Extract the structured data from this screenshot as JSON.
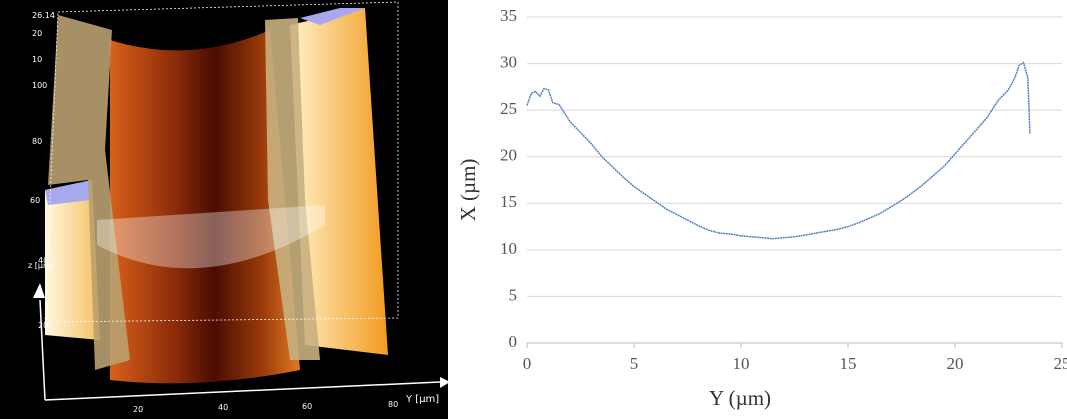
{
  "afm_image": {
    "z_labels": [
      "26.14",
      "20",
      "10",
      "100",
      "80",
      "60",
      "z [µm]",
      "40",
      "20"
    ],
    "bottom_labels": [
      "20",
      "40",
      "60",
      "80"
    ],
    "y_axis_label": "Y [µm]"
  },
  "chart_data": {
    "type": "line",
    "x_label": "Y (µm)",
    "y_label": "X (µm)",
    "x": [
      0,
      0.2,
      0.4,
      0.6,
      0.8,
      1,
      1.2,
      1.5,
      2,
      2.5,
      3,
      3.5,
      4,
      4.5,
      5,
      5.5,
      6,
      6.5,
      7,
      7.5,
      8,
      8.5,
      9,
      9.5,
      10,
      10.5,
      11,
      11.5,
      12,
      12.5,
      13,
      13.5,
      14,
      14.5,
      15,
      15.5,
      16,
      16.5,
      17,
      17.5,
      18,
      18.5,
      19,
      19.5,
      20,
      20.5,
      21,
      21.5,
      22,
      22.5,
      22.8,
      23,
      23.2,
      23.4,
      23.5
    ],
    "series": [
      {
        "color": "#4f81bd",
        "values": [
          25.5,
          26.8,
          27,
          26.5,
          27.3,
          27.2,
          25.8,
          25.6,
          23.8,
          22.6,
          21.4,
          20,
          18.9,
          17.8,
          16.8,
          16,
          15.2,
          14.4,
          13.8,
          13.2,
          12.6,
          12.1,
          11.8,
          11.7,
          11.5,
          11.4,
          11.3,
          11.2,
          11.3,
          11.4,
          11.6,
          11.8,
          12,
          12.2,
          12.5,
          12.9,
          13.4,
          13.9,
          14.6,
          15.3,
          16.1,
          17,
          18,
          19,
          20.3,
          21.6,
          22.9,
          24.2,
          26,
          27.2,
          28.5,
          29.8,
          30.1,
          28.5,
          22.5
        ]
      }
    ],
    "xlim": [
      0,
      25
    ],
    "xticks": [
      0,
      5,
      10,
      15,
      20,
      25
    ],
    "ylim": [
      0,
      35
    ],
    "yticks": [
      0,
      5,
      10,
      15,
      20,
      25,
      30,
      35
    ],
    "grid": true
  }
}
